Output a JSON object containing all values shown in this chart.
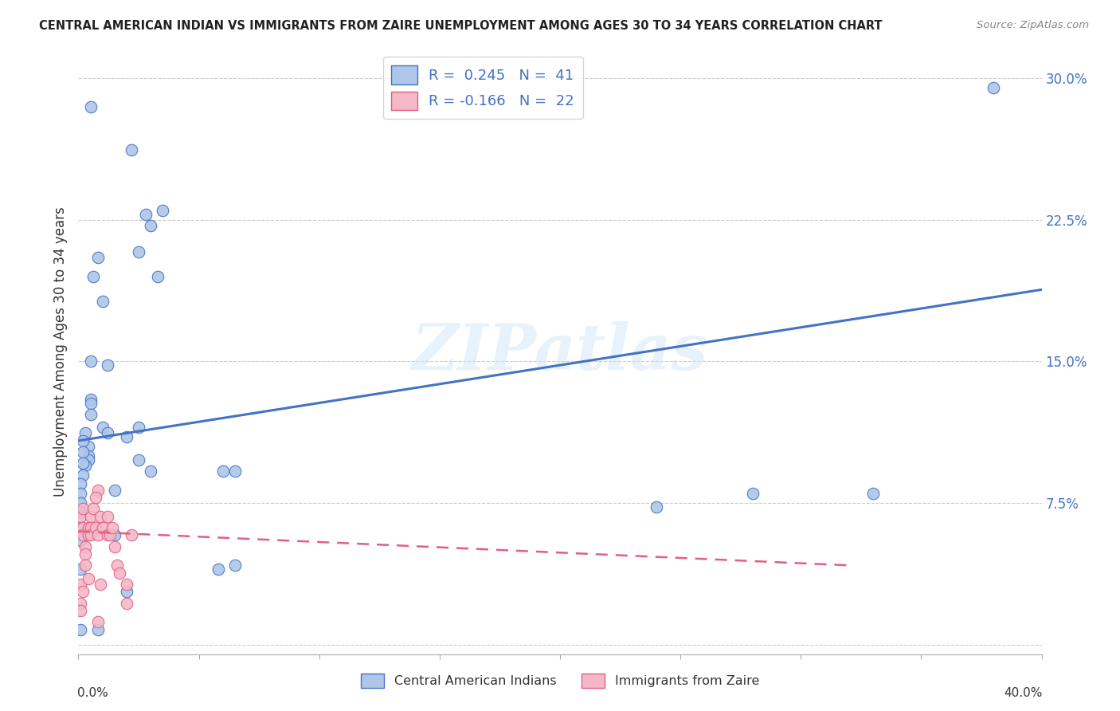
{
  "title": "CENTRAL AMERICAN INDIAN VS IMMIGRANTS FROM ZAIRE UNEMPLOYMENT AMONG AGES 30 TO 34 YEARS CORRELATION CHART",
  "source": "Source: ZipAtlas.com",
  "ylabel": "Unemployment Among Ages 30 to 34 years",
  "yticks": [
    0.0,
    0.075,
    0.15,
    0.225,
    0.3
  ],
  "ytick_labels": [
    "",
    "7.5%",
    "15.0%",
    "22.5%",
    "30.0%"
  ],
  "xlim": [
    0.0,
    0.4
  ],
  "ylim": [
    -0.005,
    0.315
  ],
  "watermark": "ZIPatlas",
  "blue_color": "#aec6e8",
  "blue_line_color": "#4472c4",
  "pink_color": "#f4b8c8",
  "pink_line_color": "#e06080",
  "blue_scatter": [
    [
      0.005,
      0.285
    ],
    [
      0.022,
      0.262
    ],
    [
      0.035,
      0.23
    ],
    [
      0.028,
      0.228
    ],
    [
      0.03,
      0.222
    ],
    [
      0.033,
      0.195
    ],
    [
      0.025,
      0.208
    ],
    [
      0.008,
      0.205
    ],
    [
      0.006,
      0.195
    ],
    [
      0.01,
      0.182
    ],
    [
      0.005,
      0.15
    ],
    [
      0.012,
      0.148
    ],
    [
      0.005,
      0.13
    ],
    [
      0.005,
      0.128
    ],
    [
      0.005,
      0.122
    ],
    [
      0.01,
      0.115
    ],
    [
      0.012,
      0.112
    ],
    [
      0.003,
      0.112
    ],
    [
      0.004,
      0.105
    ],
    [
      0.004,
      0.1
    ],
    [
      0.004,
      0.098
    ],
    [
      0.003,
      0.095
    ],
    [
      0.002,
      0.108
    ],
    [
      0.002,
      0.102
    ],
    [
      0.002,
      0.096
    ],
    [
      0.002,
      0.09
    ],
    [
      0.001,
      0.085
    ],
    [
      0.001,
      0.08
    ],
    [
      0.001,
      0.075
    ],
    [
      0.001,
      0.07
    ],
    [
      0.001,
      0.062
    ],
    [
      0.001,
      0.055
    ],
    [
      0.001,
      0.04
    ],
    [
      0.02,
      0.11
    ],
    [
      0.025,
      0.098
    ],
    [
      0.03,
      0.092
    ],
    [
      0.06,
      0.092
    ],
    [
      0.065,
      0.092
    ],
    [
      0.025,
      0.115
    ],
    [
      0.24,
      0.073
    ],
    [
      0.28,
      0.08
    ],
    [
      0.33,
      0.08
    ],
    [
      0.38,
      0.295
    ],
    [
      0.001,
      0.008
    ],
    [
      0.008,
      0.008
    ],
    [
      0.015,
      0.058
    ],
    [
      0.015,
      0.082
    ],
    [
      0.02,
      0.028
    ],
    [
      0.065,
      0.042
    ],
    [
      0.058,
      0.04
    ]
  ],
  "pink_scatter": [
    [
      0.001,
      0.068
    ],
    [
      0.002,
      0.072
    ],
    [
      0.002,
      0.062
    ],
    [
      0.002,
      0.058
    ],
    [
      0.003,
      0.052
    ],
    [
      0.003,
      0.048
    ],
    [
      0.003,
      0.042
    ],
    [
      0.004,
      0.062
    ],
    [
      0.004,
      0.058
    ],
    [
      0.005,
      0.068
    ],
    [
      0.005,
      0.062
    ],
    [
      0.005,
      0.058
    ],
    [
      0.006,
      0.072
    ],
    [
      0.007,
      0.062
    ],
    [
      0.008,
      0.058
    ],
    [
      0.008,
      0.082
    ],
    [
      0.009,
      0.068
    ],
    [
      0.01,
      0.062
    ],
    [
      0.012,
      0.058
    ],
    [
      0.013,
      0.058
    ],
    [
      0.014,
      0.062
    ],
    [
      0.015,
      0.052
    ],
    [
      0.016,
      0.042
    ],
    [
      0.017,
      0.038
    ],
    [
      0.02,
      0.032
    ],
    [
      0.02,
      0.022
    ],
    [
      0.022,
      0.058
    ],
    [
      0.001,
      0.022
    ],
    [
      0.001,
      0.018
    ],
    [
      0.008,
      0.012
    ],
    [
      0.009,
      0.032
    ],
    [
      0.012,
      0.068
    ],
    [
      0.007,
      0.078
    ],
    [
      0.001,
      0.032
    ],
    [
      0.002,
      0.028
    ],
    [
      0.004,
      0.035
    ]
  ],
  "blue_trendline_x": [
    0.0,
    0.4
  ],
  "blue_trendline_y": [
    0.108,
    0.188
  ],
  "pink_trendline_x": [
    0.0,
    0.32
  ],
  "pink_trendline_y": [
    0.06,
    0.042
  ]
}
